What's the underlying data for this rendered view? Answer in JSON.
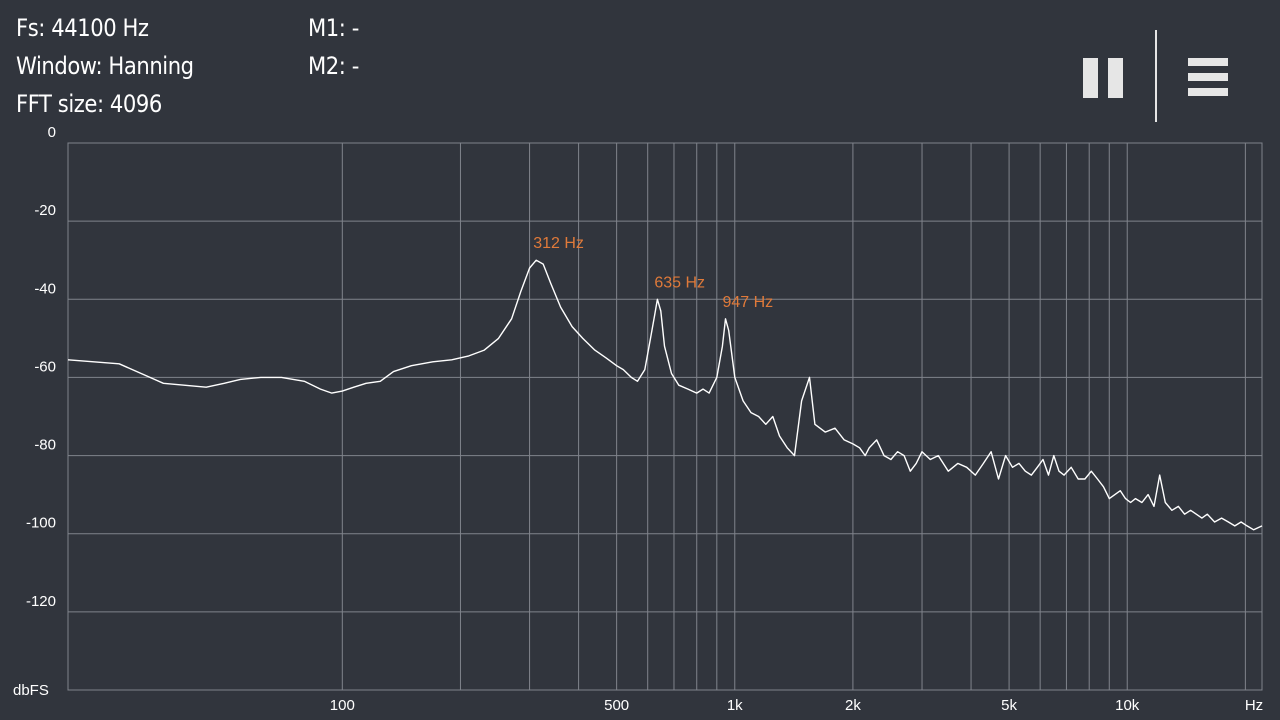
{
  "info": {
    "fs": "Fs: 44100 Hz",
    "window": "Window: Hanning",
    "fft_size": "FFT size: 4096",
    "m1": "M1: -",
    "m2": "M2: -"
  },
  "controls": {
    "pause_icon": "pause-icon",
    "menu_icon": "hamburger-menu-icon"
  },
  "colors": {
    "background": "#31353d",
    "grid": "#80848c",
    "trace": "#ffffff",
    "peak_label": "#e07a3a"
  },
  "chart_data": {
    "type": "line",
    "title": "",
    "xlabel": "Hz",
    "ylabel": "dbFS",
    "x_scale": "log",
    "xlim": [
      20,
      22050
    ],
    "ylim": [
      -140,
      0
    ],
    "grid": true,
    "y_ticks": [
      0,
      -20,
      -40,
      -60,
      -80,
      -100,
      -120
    ],
    "y_tick_labels": [
      "0",
      "-20",
      "-40",
      "-60",
      "-80",
      "-100",
      "-120"
    ],
    "x_tick_labels": [
      {
        "value": 100,
        "label": "100"
      },
      {
        "value": 500,
        "label": "500"
      },
      {
        "value": 1000,
        "label": "1k"
      },
      {
        "value": 2000,
        "label": "2k"
      },
      {
        "value": 5000,
        "label": "5k"
      },
      {
        "value": 10000,
        "label": "10k"
      }
    ],
    "x_gridlines": [
      100,
      200,
      300,
      400,
      500,
      600,
      700,
      800,
      900,
      1000,
      2000,
      3000,
      4000,
      5000,
      6000,
      7000,
      8000,
      9000,
      10000,
      20000
    ],
    "annotations": [
      {
        "text": "312 Hz",
        "x": 312,
        "y": -30
      },
      {
        "text": "635 Hz",
        "x": 635,
        "y": -40
      },
      {
        "text": "947 Hz",
        "x": 947,
        "y": -45
      }
    ],
    "series": [
      {
        "x": [
          20,
          27,
          35,
          45,
          50,
          55,
          62,
          70,
          80,
          88,
          94,
          100,
          107,
          115,
          125,
          135,
          150,
          170,
          190,
          210,
          230,
          250,
          270,
          285,
          300,
          312,
          325,
          340,
          360,
          385,
          410,
          440,
          470,
          500,
          520,
          545,
          565,
          590,
          610,
          625,
          635,
          648,
          662,
          690,
          720,
          760,
          800,
          830,
          860,
          900,
          930,
          947,
          965,
          1000,
          1050,
          1100,
          1150,
          1200,
          1250,
          1300,
          1360,
          1420,
          1480,
          1550,
          1600,
          1700,
          1800,
          1900,
          2000,
          2080,
          2150,
          2200,
          2300,
          2400,
          2500,
          2600,
          2700,
          2800,
          2900,
          3000,
          3150,
          3300,
          3500,
          3700,
          3900,
          4100,
          4300,
          4500,
          4700,
          4900,
          5100,
          5300,
          5500,
          5700,
          5900,
          6100,
          6300,
          6500,
          6700,
          6900,
          7200,
          7500,
          7800,
          8100,
          8400,
          8700,
          9000,
          9300,
          9600,
          9900,
          10200,
          10500,
          10900,
          11300,
          11700,
          12100,
          12500,
          13000,
          13500,
          14000,
          14500,
          15000,
          15500,
          16000,
          16700,
          17400,
          18100,
          18800,
          19500,
          20200,
          21000,
          22050
        ],
        "y": [
          -55.5,
          -56.5,
          -61.5,
          -62.5,
          -61.5,
          -60.5,
          -60,
          -60,
          -61,
          -63,
          -64,
          -63.5,
          -62.5,
          -61.5,
          -61,
          -58.5,
          -57,
          -56,
          -55.5,
          -54.5,
          -53,
          -50,
          -45,
          -38,
          -32,
          -30,
          -31,
          -36,
          -42,
          -47,
          -50,
          -53,
          -55,
          -57,
          -58,
          -60,
          -61,
          -58,
          -50,
          -44,
          -40,
          -43,
          -52,
          -59,
          -62,
          -63,
          -64,
          -63,
          -64,
          -60,
          -52,
          -45,
          -48,
          -60,
          -66,
          -69,
          -70,
          -72,
          -70,
          -75,
          -78,
          -80,
          -66,
          -60,
          -72,
          -74,
          -73,
          -76,
          -77,
          -78,
          -80,
          -78,
          -76,
          -80,
          -81,
          -79,
          -80,
          -84,
          -82,
          -79,
          -81,
          -80,
          -84,
          -82,
          -83,
          -85,
          -82,
          -79,
          -86,
          -80,
          -83,
          -82,
          -84,
          -85,
          -83,
          -81,
          -85,
          -80,
          -84,
          -85,
          -83,
          -86,
          -86,
          -84,
          -86,
          -88,
          -91,
          -90,
          -89,
          -91,
          -92,
          -91,
          -92,
          -90,
          -93,
          -85,
          -92,
          -94,
          -93,
          -95,
          -94,
          -95,
          -96,
          -95,
          -97,
          -96,
          -97,
          -98,
          -97,
          -98,
          -99,
          -98
        ]
      }
    ]
  }
}
